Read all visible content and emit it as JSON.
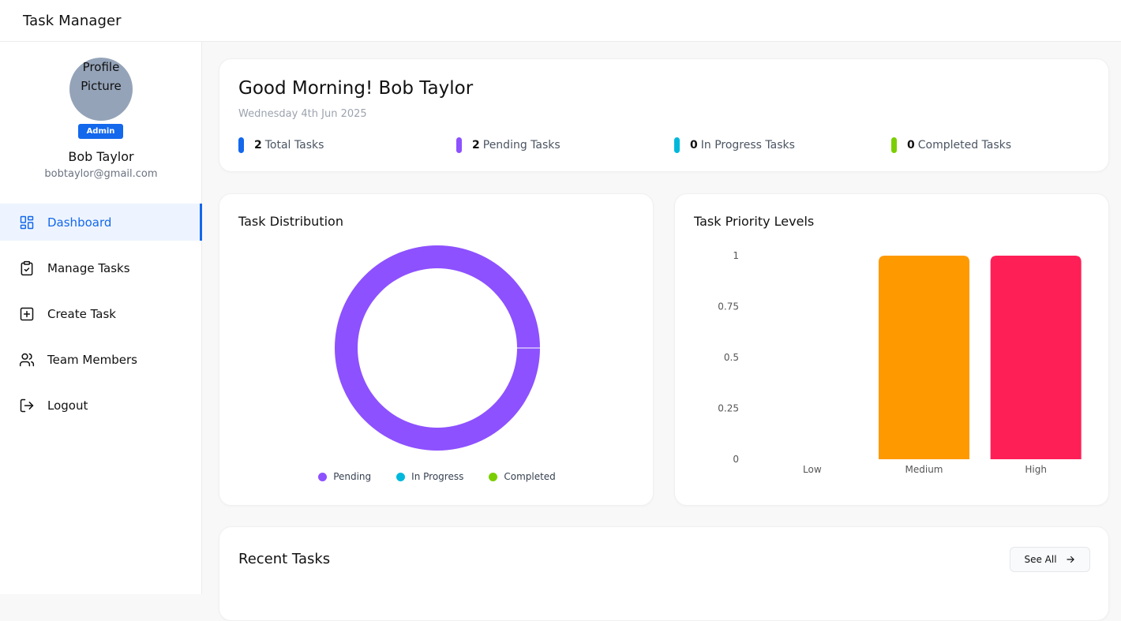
{
  "app": {
    "title": "Task Manager"
  },
  "profile": {
    "image_alt": "Profile Picture",
    "role": "Admin",
    "name": "Bob Taylor",
    "email": "bobtaylor@gmail.com"
  },
  "nav": {
    "items": [
      {
        "label": "Dashboard",
        "icon": "dashboard-icon",
        "active": true
      },
      {
        "label": "Manage Tasks",
        "icon": "clipboard-check-icon",
        "active": false
      },
      {
        "label": "Create Task",
        "icon": "plus-square-icon",
        "active": false
      },
      {
        "label": "Team Members",
        "icon": "users-icon",
        "active": false
      },
      {
        "label": "Logout",
        "icon": "logout-icon",
        "active": false
      }
    ]
  },
  "greeting": {
    "text": "Good Morning! Bob Taylor",
    "date": "Wednesday 4th Jun 2025"
  },
  "stats": [
    {
      "count": "2",
      "label": "Total Tasks",
      "color": "#1368ec"
    },
    {
      "count": "2",
      "label": "Pending Tasks",
      "color": "#8d51ff"
    },
    {
      "count": "0",
      "label": "In Progress Tasks",
      "color": "#00b8db"
    },
    {
      "count": "0",
      "label": "Completed Tasks",
      "color": "#7bce00"
    }
  ],
  "distribution": {
    "title": "Task Distribution",
    "chart_data": {
      "type": "pie",
      "donut": true,
      "categories": [
        "Pending",
        "In Progress",
        "Completed"
      ],
      "values": [
        2,
        0,
        0
      ],
      "colors": [
        "#8d51ff",
        "#00b8db",
        "#7bce00"
      ],
      "legend_position": "bottom"
    }
  },
  "priority": {
    "title": "Task Priority Levels",
    "chart_data": {
      "type": "bar",
      "categories": [
        "Low",
        "Medium",
        "High"
      ],
      "values": [
        0,
        1,
        1
      ],
      "colors": [
        "#00bc7d",
        "#fe9900",
        "#ff1f57"
      ],
      "ylim": [
        0,
        1
      ],
      "yticks": [
        "0",
        "0.25",
        "0.5",
        "0.75",
        "1"
      ],
      "grid": false
    }
  },
  "recent": {
    "title": "Recent Tasks",
    "see_all_label": "See All"
  }
}
